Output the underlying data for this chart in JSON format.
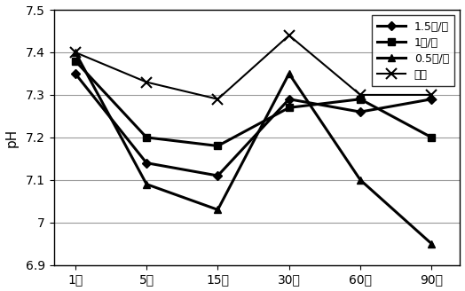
{
  "x_labels": [
    "1天",
    "5天",
    "15天",
    "30天",
    "60天",
    "90天"
  ],
  "x_positions": [
    0,
    1,
    2,
    3,
    4,
    5
  ],
  "series": [
    {
      "label": "1.5吨/亩",
      "values": [
        7.35,
        7.14,
        7.11,
        7.29,
        7.26,
        7.29
      ],
      "color": "#000000",
      "marker": "D",
      "linewidth": 2.2,
      "markersize": 5
    },
    {
      "label": "1吨/亩",
      "values": [
        7.38,
        7.2,
        7.18,
        7.27,
        7.29,
        7.2
      ],
      "color": "#000000",
      "marker": "s",
      "linewidth": 2.2,
      "markersize": 6
    },
    {
      "label": "0.5吨/亩",
      "values": [
        7.4,
        7.09,
        7.03,
        7.35,
        7.1,
        6.95
      ],
      "color": "#000000",
      "marker": "^",
      "linewidth": 2.2,
      "markersize": 6
    },
    {
      "label": "空白",
      "values": [
        7.4,
        7.33,
        7.29,
        7.44,
        7.3,
        7.3
      ],
      "color": "#000000",
      "marker": "x",
      "linewidth": 1.5,
      "markersize": 7
    }
  ],
  "ylabel": "pH",
  "ylim": [
    6.9,
    7.5
  ],
  "yticks": [
    6.9,
    7.0,
    7.1,
    7.2,
    7.3,
    7.4,
    7.5
  ],
  "ytick_labels": [
    "6.9",
    "7",
    "7.1",
    "7.2",
    "7.3",
    "7.4",
    "7.5"
  ],
  "background_color": "#ffffff",
  "grid_color": "#999999",
  "legend_labels": [
    "1.5吨/亩",
    "1吨/亩",
    "0.5吨/亩",
    "空白"
  ]
}
